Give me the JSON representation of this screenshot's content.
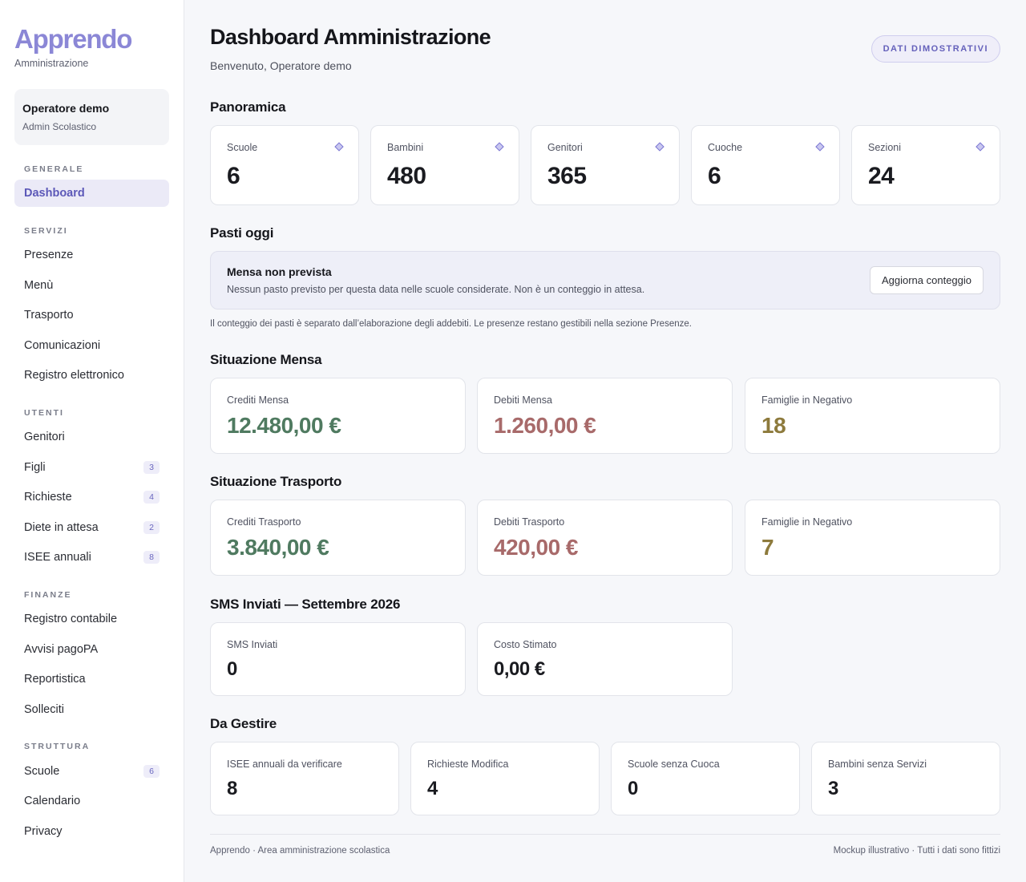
{
  "brand": {
    "name": "Apprendo",
    "subtitle": "Amministrazione"
  },
  "user": {
    "name": "Operatore demo",
    "role": "Admin Scolastico"
  },
  "nav": {
    "generale": {
      "title": "GENERALE",
      "items": [
        {
          "label": "Dashboard"
        }
      ]
    },
    "servizi": {
      "title": "SERVIZI",
      "items": [
        {
          "label": "Presenze"
        },
        {
          "label": "Menù"
        },
        {
          "label": "Trasporto"
        },
        {
          "label": "Comunicazioni"
        },
        {
          "label": "Registro elettronico"
        }
      ]
    },
    "utenti": {
      "title": "UTENTI",
      "items": [
        {
          "label": "Genitori"
        },
        {
          "label": "Figli",
          "badge": "3"
        },
        {
          "label": "Richieste",
          "badge": "4"
        },
        {
          "label": "Diete in attesa",
          "badge": "2"
        },
        {
          "label": "ISEE annuali",
          "badge": "8"
        }
      ]
    },
    "finanze": {
      "title": "FINANZE",
      "items": [
        {
          "label": "Registro contabile"
        },
        {
          "label": "Avvisi pagoPA"
        },
        {
          "label": "Reportistica"
        },
        {
          "label": "Solleciti"
        }
      ]
    },
    "struttura": {
      "title": "STRUTTURA",
      "items": [
        {
          "label": "Scuole",
          "badge": "6"
        },
        {
          "label": "Calendario"
        },
        {
          "label": "Privacy"
        }
      ]
    }
  },
  "header": {
    "title": "Dashboard Amministrazione",
    "welcome": "Benvenuto, Operatore demo",
    "demo_badge": "DATI DIMOSTRATIVI"
  },
  "panoramica": {
    "title": "Panoramica",
    "cards": [
      {
        "label": "Scuole",
        "value": "6",
        "icon": "diamond-icon"
      },
      {
        "label": "Bambini",
        "value": "480",
        "icon": "diamond-icon"
      },
      {
        "label": "Genitori",
        "value": "365",
        "icon": "diamond-icon"
      },
      {
        "label": "Cuoche",
        "value": "6",
        "icon": "diamond-icon"
      },
      {
        "label": "Sezioni",
        "value": "24",
        "icon": "diamond-icon"
      }
    ]
  },
  "pasti": {
    "title": "Pasti oggi",
    "status_title": "Mensa non prevista",
    "status_desc": "Nessun pasto previsto per questa data nelle scuole considerate. Non è un conteggio in attesa.",
    "button": "Aggiorna conteggio",
    "note": "Il conteggio dei pasti è separato dall’elaborazione degli addebiti. Le presenze restano gestibili nella sezione Presenze."
  },
  "mensa": {
    "title": "Situazione Mensa",
    "cards": [
      {
        "label": "Crediti Mensa",
        "value": "12.480,00 €",
        "color": "#4f7a60"
      },
      {
        "label": "Debiti Mensa",
        "value": "1.260,00 €",
        "color": "#a86a6a"
      },
      {
        "label": "Famiglie in Negativo",
        "value": "18",
        "color": "#8d7a3c"
      }
    ]
  },
  "trasporto": {
    "title": "Situazione Trasporto",
    "cards": [
      {
        "label": "Crediti Trasporto",
        "value": "3.840,00 €",
        "color": "#4f7a60"
      },
      {
        "label": "Debiti Trasporto",
        "value": "420,00 €",
        "color": "#a86a6a"
      },
      {
        "label": "Famiglie in Negativo",
        "value": "7",
        "color": "#8d7a3c"
      }
    ]
  },
  "sms": {
    "title": "SMS Inviati — Settembre 2026",
    "cards": [
      {
        "label": "SMS Inviati",
        "value": "0"
      },
      {
        "label": "Costo Stimato",
        "value": "0,00 €"
      }
    ]
  },
  "gestire": {
    "title": "Da Gestire",
    "cards": [
      {
        "label": "ISEE annuali da verificare",
        "value": "8"
      },
      {
        "label": "Richieste Modifica",
        "value": "4"
      },
      {
        "label": "Scuole senza Cuoca",
        "value": "0"
      },
      {
        "label": "Bambini senza Servizi",
        "value": "3"
      }
    ]
  },
  "footer": {
    "left": "Apprendo · Area amministrazione scolastica",
    "right": "Mockup illustrativo · Tutti i dati sono fittizi"
  }
}
